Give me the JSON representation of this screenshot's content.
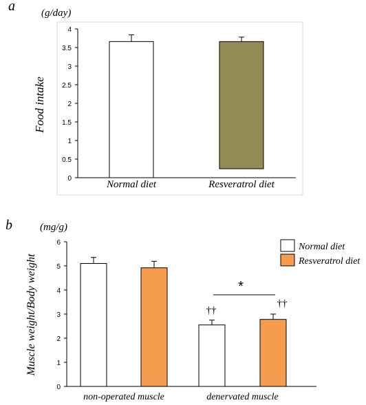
{
  "panel_labels": {
    "a": "a",
    "b": "b"
  },
  "chart_data": [
    {
      "type": "bar",
      "panel": "a",
      "unit": "(g/day)",
      "ylabel": "Food intake",
      "ylim": [
        0,
        4
      ],
      "yticks": [
        "0",
        "0.5",
        "1",
        "1.5",
        "2",
        "2.5",
        "3",
        "3.5",
        "4"
      ],
      "categories": [
        "Normal diet",
        "Resveratrol diet"
      ],
      "values": [
        3.66,
        3.66
      ],
      "errors": [
        0.18,
        0.12
      ],
      "colors": [
        "#ffffff",
        "#938b55"
      ],
      "grid": false
    },
    {
      "type": "bar",
      "panel": "b",
      "unit": "(mg/g)",
      "ylabel": "Muscle weight/Body weight",
      "ylim": [
        0,
        6
      ],
      "yticks": [
        "0",
        "1",
        "2",
        "3",
        "4",
        "5",
        "6"
      ],
      "categories": [
        "non-operated muscle",
        "denervated muscle"
      ],
      "series": [
        {
          "name": "Normal diet",
          "values": [
            5.1,
            2.55
          ],
          "errors": [
            0.25,
            0.2
          ],
          "color": "#ffffff"
        },
        {
          "name": "Resveratrol diet",
          "values": [
            4.92,
            2.78
          ],
          "errors": [
            0.27,
            0.22
          ],
          "color": "#f59c4f"
        }
      ],
      "annotations": {
        "significance": "*",
        "daggers": "††"
      },
      "legend_position": "top-right",
      "grid": false
    }
  ]
}
